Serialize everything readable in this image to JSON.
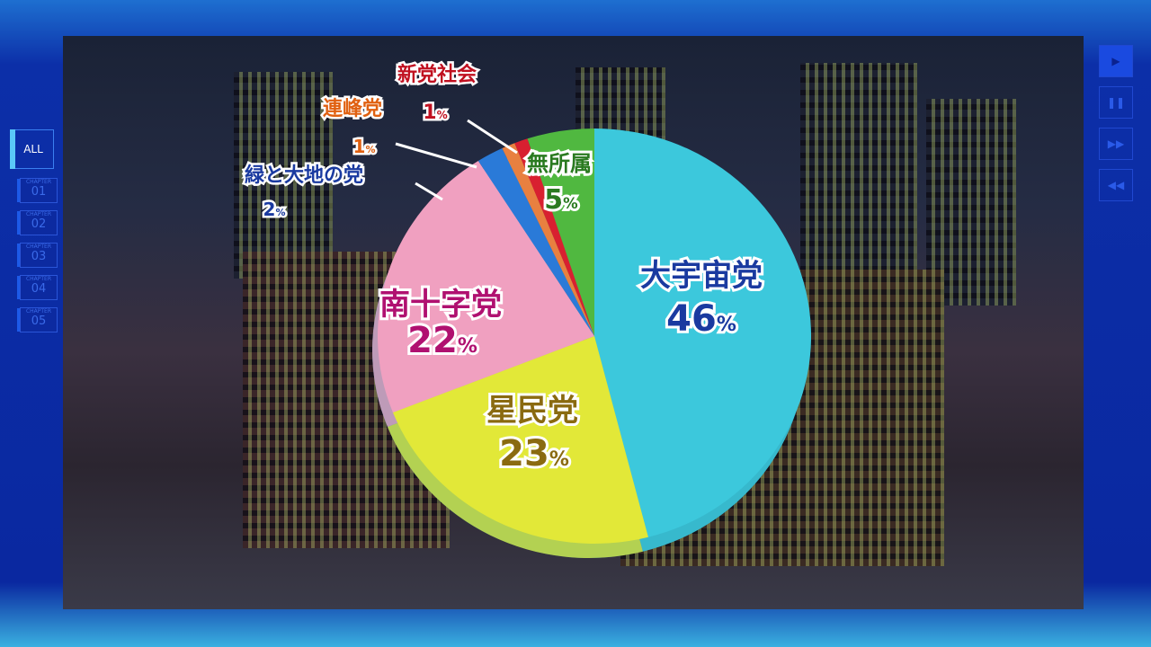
{
  "player": {
    "all_label": "ALL",
    "chapter_word": "CHAPTER",
    "chapters": [
      "01",
      "02",
      "03",
      "04",
      "05"
    ],
    "controls": [
      {
        "name": "play",
        "glyph": "▶"
      },
      {
        "name": "pause",
        "glyph": "❚❚"
      },
      {
        "name": "fast-forward",
        "glyph": "▶▶"
      },
      {
        "name": "rewind",
        "glyph": "◀◀"
      }
    ]
  },
  "chart_data": {
    "type": "pie",
    "start": "12 o'clock",
    "direction": "clockwise",
    "slices": [
      {
        "label": "大宇宙党",
        "value": 46,
        "display": "46",
        "color": "#3cc8dc",
        "text_color": "#1a3aa0"
      },
      {
        "label": "星民党",
        "value": 23,
        "display": "23",
        "color": "#e2e838",
        "text_color": "#8a6a10"
      },
      {
        "label": "南十字党",
        "value": 22,
        "display": "22",
        "color": "#f0a0c0",
        "text_color": "#b01070"
      },
      {
        "label": "緑と大地の党",
        "value": 2,
        "display": "2",
        "color": "#2a7ad8",
        "text_color": "#1a3aa0"
      },
      {
        "label": "連峰党",
        "value": 1,
        "display": "1",
        "color": "#e88040",
        "text_color": "#e06010"
      },
      {
        "label": "新党社会",
        "value": 1,
        "display": "1",
        "color": "#d82030",
        "text_color": "#c01020"
      },
      {
        "label": "無所属",
        "value": 5,
        "display": "5",
        "color": "#50b840",
        "text_color": "#2a7a20"
      }
    ],
    "unit": "%"
  }
}
